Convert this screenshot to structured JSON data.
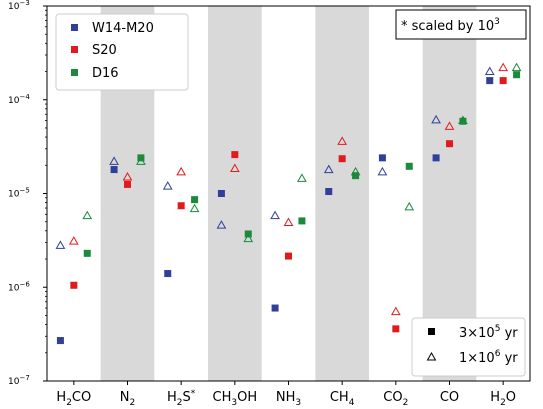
{
  "chart_data": {
    "type": "scatter",
    "title": "",
    "xlabel": "",
    "ylabel": "",
    "yscale": "log",
    "ylim": [
      1e-07,
      0.001
    ],
    "grid": false,
    "categories": [
      "H2CO",
      "N2",
      "H2S*",
      "CH3OH",
      "NH3",
      "CH4",
      "CO2",
      "CO",
      "H2O"
    ],
    "category_labels": [
      {
        "base": "H",
        "sub": "2",
        "rest": "CO",
        "sup": ""
      },
      {
        "base": "N",
        "sub": "2",
        "rest": "",
        "sup": ""
      },
      {
        "base": "H",
        "sub": "2",
        "rest": "S",
        "sup": "*"
      },
      {
        "base": "CH",
        "sub": "3",
        "rest": "OH",
        "sup": ""
      },
      {
        "base": "NH",
        "sub": "3",
        "rest": "",
        "sup": ""
      },
      {
        "base": "CH",
        "sub": "4",
        "rest": "",
        "sup": ""
      },
      {
        "base": "CO",
        "sub": "2",
        "rest": "",
        "sup": ""
      },
      {
        "base": "CO",
        "sub": "",
        "rest": "",
        "sup": ""
      },
      {
        "base": "H",
        "sub": "2",
        "rest": "O",
        "sup": ""
      }
    ],
    "shaded_categories": [
      1,
      3,
      5,
      7
    ],
    "y_tick_labels": [
      {
        "mant": "10",
        "exp": "−7",
        "value": 1e-07
      },
      {
        "mant": "10",
        "exp": "−6",
        "value": 1e-06
      },
      {
        "mant": "10",
        "exp": "−5",
        "value": 1e-05
      },
      {
        "mant": "10",
        "exp": "−4",
        "value": 0.0001
      },
      {
        "mant": "10",
        "exp": "−3",
        "value": 0.001
      }
    ],
    "legend_placement": "top-left",
    "time_legend_placement": "bottom-right",
    "series": [
      {
        "name": "W14-M20",
        "color": "#2f3f9a",
        "values_3e5": [
          2.7e-07,
          1.8e-05,
          1.4e-06,
          1e-05,
          6e-07,
          1.05e-05,
          2.4e-05,
          2.4e-05,
          0.00016
        ],
        "values_1e6": [
          2.8e-06,
          2.2e-05,
          1.2e-05,
          4.6e-06,
          5.8e-06,
          1.8e-05,
          1.7e-05,
          6.1e-05,
          0.0002
        ]
      },
      {
        "name": "S20",
        "color": "#e31a1c",
        "values_3e5": [
          1.05e-06,
          1.25e-05,
          7.4e-06,
          2.6e-05,
          2.15e-06,
          2.35e-05,
          3.6e-07,
          3.4e-05,
          0.00016
        ],
        "values_1e6": [
          3.1e-06,
          1.5e-05,
          1.7e-05,
          1.85e-05,
          4.9e-06,
          3.6e-05,
          5.5e-07,
          5.2e-05,
          0.00022
        ]
      },
      {
        "name": "D16",
        "color": "#1b8a3a",
        "values_3e5": [
          2.3e-06,
          2.4e-05,
          8.6e-06,
          3.7e-06,
          5.1e-06,
          1.55e-05,
          1.95e-05,
          5.9e-05,
          0.000185
        ],
        "values_1e6": [
          5.8e-06,
          2.2e-05,
          6.9e-06,
          3.3e-06,
          1.45e-05,
          1.7e-05,
          7.2e-06,
          6e-05,
          0.00022
        ]
      }
    ],
    "time_legend": [
      {
        "marker": "filled-square",
        "mant": "3×10",
        "exp": "5",
        "unit": " yr"
      },
      {
        "marker": "open-triangle",
        "mant": "1×10",
        "exp": "6",
        "unit": " yr"
      }
    ],
    "annotation": {
      "prefix": "* scaled by 10",
      "exp": "3"
    }
  }
}
